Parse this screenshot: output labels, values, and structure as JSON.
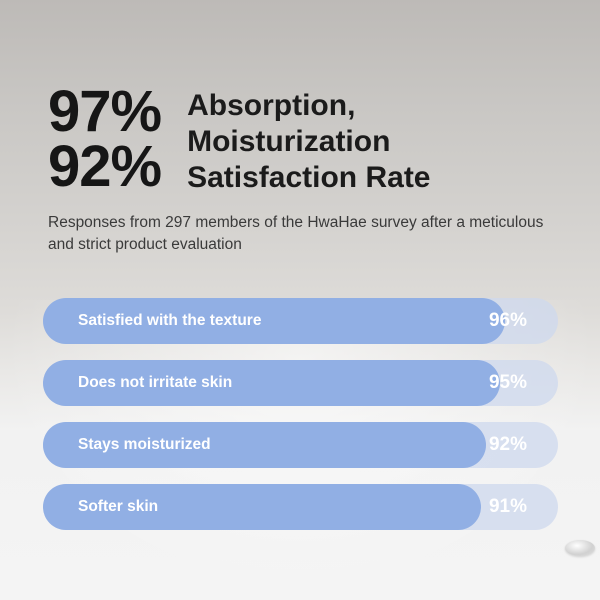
{
  "headline": {
    "stats": [
      "97%",
      "92%"
    ],
    "title_lines": [
      "Absorption,",
      "Moisturization",
      "Satisfaction Rate"
    ]
  },
  "subtitle": "Responses from 297 members of the HwaHae survey after a meticulous and strict product evaluation",
  "bars": [
    {
      "label": "Satisfied with the texture",
      "value_text": "96%",
      "value": 96
    },
    {
      "label": "Does not irritate skin",
      "value_text": "95%",
      "value": 95
    },
    {
      "label": "Stays moisturized",
      "value_text": "92%",
      "value": 92
    },
    {
      "label": "Softer skin",
      "value_text": "91%",
      "value": 91
    }
  ],
  "colors": {
    "bar_fill": "#91afe4",
    "bar_track": "#cdd8ee",
    "text_dark": "#161616"
  }
}
